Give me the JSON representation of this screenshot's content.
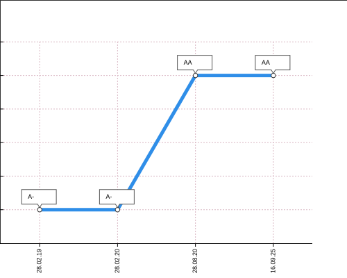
{
  "chart_data": {
    "type": "line",
    "categories": [
      "28.02.19",
      "28.02.20",
      "28.08.20",
      "16.09.25"
    ],
    "values": [
      1,
      1,
      5,
      5
    ],
    "value_labels": [
      "A-",
      "A-",
      "AA",
      "AA"
    ],
    "color": "#2f8ee8",
    "ylim": [
      0,
      7
    ],
    "yticks": [
      1,
      2,
      3,
      4,
      5,
      6
    ],
    "grid": true
  }
}
